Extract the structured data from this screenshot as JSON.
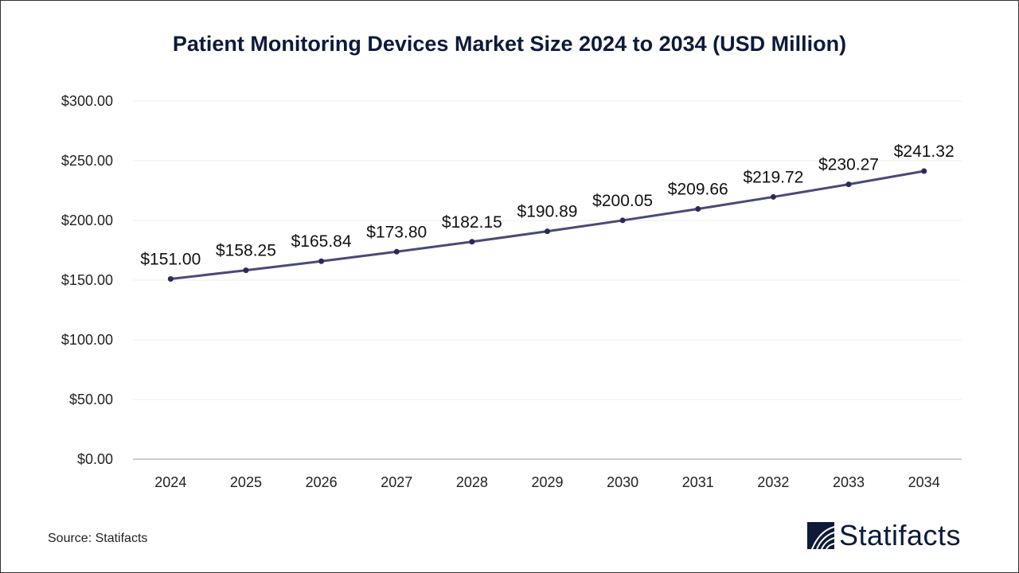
{
  "chart_data": {
    "type": "line",
    "title": "Patient Monitoring Devices Market Size 2024 to 2034 (USD Million)",
    "categories": [
      "2024",
      "2025",
      "2026",
      "2027",
      "2028",
      "2029",
      "2030",
      "2031",
      "2032",
      "2033",
      "2034"
    ],
    "values": [
      151.0,
      158.25,
      165.84,
      173.8,
      182.15,
      190.89,
      200.05,
      209.66,
      219.72,
      230.27,
      241.32
    ],
    "data_labels": [
      "$151.00",
      "$158.25",
      "$165.84",
      "$173.80",
      "$182.15",
      "$190.89",
      "$200.05",
      "$209.66",
      "$219.72",
      "$230.27",
      "$241.32"
    ],
    "yticks": [
      0,
      50,
      100,
      150,
      200,
      250,
      300
    ],
    "ytick_labels": [
      "$0.00",
      "$50.00",
      "$100.00",
      "$150.00",
      "$200.00",
      "$250.00",
      "$300.00"
    ],
    "ylim": [
      0,
      300
    ],
    "grid": true,
    "line_color": "#4a4a78",
    "marker_color": "#2a2a5a"
  },
  "source": "Source: Statifacts",
  "logo": "Statifacts"
}
